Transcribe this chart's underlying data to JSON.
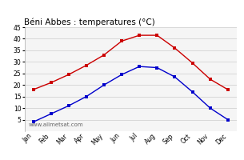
{
  "title": "Béni Abbes : temperatures (°C)",
  "months": [
    "Jan",
    "Feb",
    "Mar",
    "Apr",
    "May",
    "Jun",
    "Jul",
    "Aug",
    "Sep",
    "Oct",
    "Nov",
    "Dec"
  ],
  "red_line": [
    18,
    21,
    24.5,
    28.5,
    33,
    39,
    41.5,
    41.5,
    36,
    29.5,
    22.5,
    18
  ],
  "blue_line": [
    4,
    7.5,
    11,
    15,
    20,
    24.5,
    28,
    27.5,
    23.5,
    17,
    10,
    5
  ],
  "ylim": [
    0,
    45
  ],
  "yticks": [
    5,
    10,
    15,
    20,
    25,
    30,
    35,
    40,
    45
  ],
  "red_color": "#cc0000",
  "blue_color": "#0000cc",
  "grid_color": "#cccccc",
  "bg_color": "#ffffff",
  "plot_bg_color": "#f5f5f5",
  "watermark": "www.allmetsat.com",
  "title_fontsize": 7.5,
  "axis_fontsize": 5.5,
  "watermark_fontsize": 5
}
